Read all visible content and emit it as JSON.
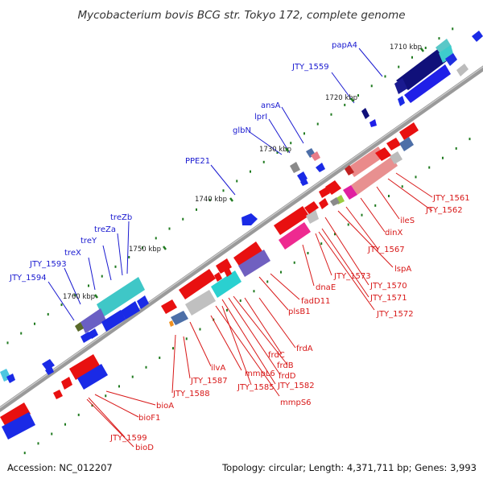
{
  "title": "Mycobacterium bovis BCG str. Tokyo 172, complete genome",
  "footer": {
    "accession": "Accession: NC_012207",
    "summary": "Topology: circular; Length: 4,371,711 bp; Genes: 3,993"
  },
  "colors": {
    "backbone": "#8a8a8a",
    "tick_dot": "#1f7a1f",
    "label_top": "#1a1ad0",
    "label_bottom": "#d81818"
  },
  "kbp_markers": [
    "1710 kbp",
    "1720 kbp",
    "1730 kbp",
    "1740 kbp",
    "1750 kbp",
    "1760 kbp"
  ],
  "labels_top": [
    "papA4",
    "JTY_1559",
    "ansA",
    "lprI",
    "glbN",
    "PPE21",
    "treZb",
    "treZa",
    "treY",
    "treX",
    "JTY_1593",
    "JTY_1594"
  ],
  "labels_bottom": [
    "JTY_1561",
    "JTY_1562",
    "ileS",
    "dinX",
    "JTY_1567",
    "lspA",
    "JTY_1570",
    "JTY_1571",
    "JTY_1572",
    "JTY_1573",
    "dnaE",
    "fadD11",
    "plsB1",
    "frdA",
    "frdC",
    "frdB",
    "frdD",
    "JTY_1582",
    "mmpS6",
    "mmpL6",
    "JTY_1585",
    "ilvA",
    "JTY_1587",
    "JTY_1588",
    "bioA",
    "bioF1",
    "JTY_1599",
    "bioD"
  ]
}
